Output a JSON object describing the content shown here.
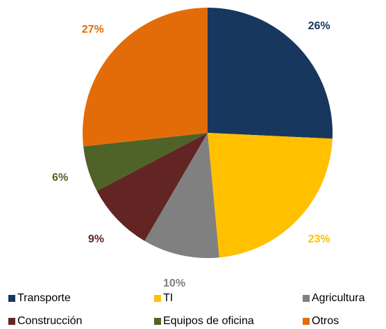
{
  "chart_data": {
    "type": "pie",
    "categories": [
      "Transporte",
      "TI",
      "Agricultura",
      "Construcción",
      "Equipos de oficina",
      "Otros"
    ],
    "values": [
      26,
      23,
      10,
      9,
      6,
      27
    ],
    "value_labels": [
      "26%",
      "23%",
      "10%",
      "9%",
      "6%",
      "27%"
    ],
    "colors": [
      "#17375e",
      "#ffc000",
      "#808080",
      "#632523",
      "#4f6228",
      "#e36c09"
    ],
    "legend": "bottom"
  }
}
